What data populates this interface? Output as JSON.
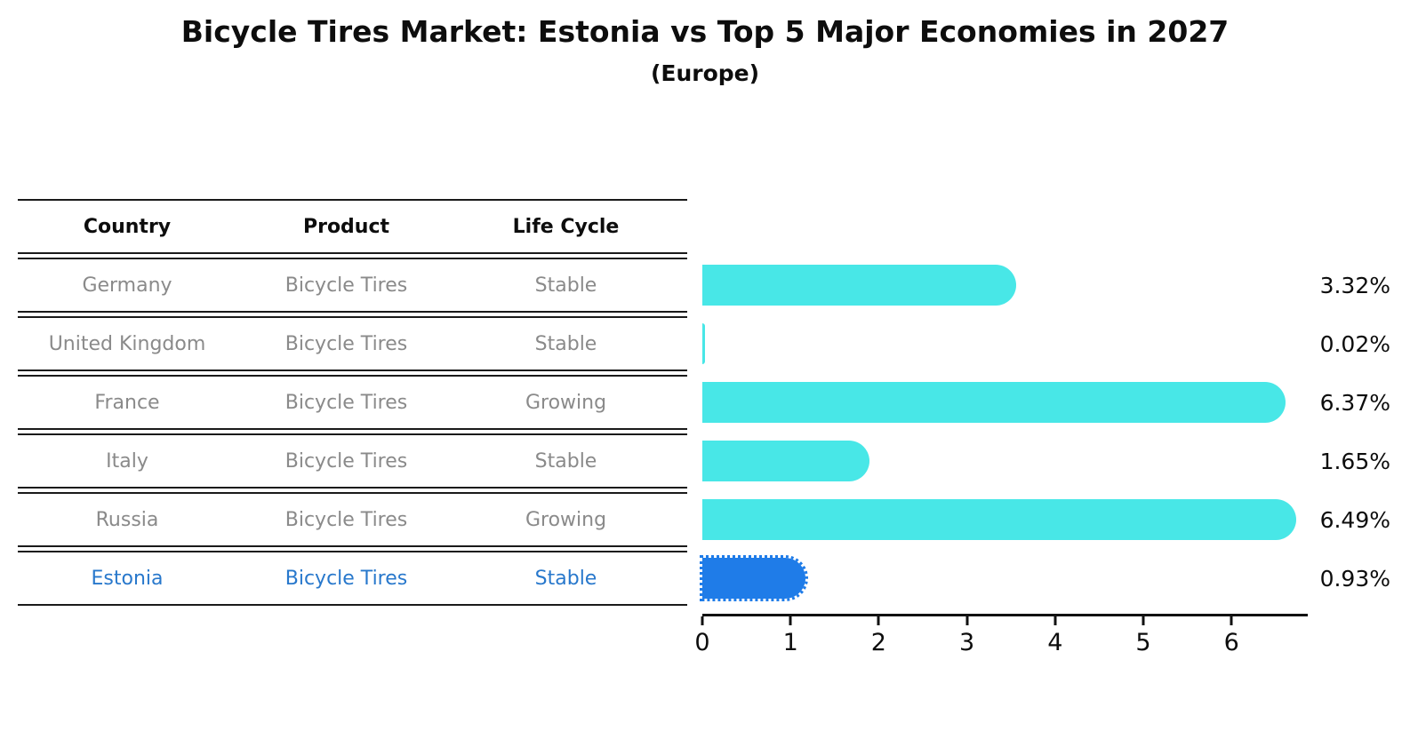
{
  "title": "Bicycle Tires Market: Estonia vs Top 5 Major Economies in 2027",
  "subtitle": "(Europe)",
  "table": {
    "headers": [
      "Country",
      "Product",
      "Life Cycle"
    ],
    "rows": [
      {
        "country": "Germany",
        "product": "Bicycle Tires",
        "life_cycle": "Stable",
        "highlight": false
      },
      {
        "country": "United Kingdom",
        "product": "Bicycle Tires",
        "life_cycle": "Stable",
        "highlight": false
      },
      {
        "country": "France",
        "product": "Bicycle Tires",
        "life_cycle": "Growing",
        "highlight": false
      },
      {
        "country": "Italy",
        "product": "Bicycle Tires",
        "life_cycle": "Stable",
        "highlight": false
      },
      {
        "country": "Russia",
        "product": "Bicycle Tires",
        "life_cycle": "Growing",
        "highlight": false
      },
      {
        "country": "Estonia",
        "product": "Bicycle Tires",
        "life_cycle": "Stable",
        "highlight": true
      }
    ]
  },
  "chart_data": {
    "type": "bar",
    "orientation": "horizontal",
    "title": "Bicycle Tires Market: Estonia vs Top 5 Major Economies in 2027 (Europe)",
    "categories": [
      "Germany",
      "United Kingdom",
      "France",
      "Italy",
      "Russia",
      "Estonia"
    ],
    "values": [
      3.32,
      0.02,
      6.37,
      1.65,
      6.49,
      0.93
    ],
    "labels": [
      "3.32%",
      "0.02%",
      "6.37%",
      "1.65%",
      "6.49%",
      "0.93%"
    ],
    "x_ticks": [
      0,
      1,
      2,
      3,
      4,
      5,
      6
    ],
    "xlim": [
      0,
      6.85
    ],
    "grid": false,
    "legend": false,
    "bar_color": "#48e7e7",
    "highlight_color": "#1f7ce8",
    "highlight_category": "Estonia"
  },
  "colors": {
    "text_primary": "#0d0d0d",
    "text_muted": "#8a8a8a",
    "text_highlight": "#2878cc",
    "table_line": "#1a1a1a",
    "axis": "#111111"
  }
}
